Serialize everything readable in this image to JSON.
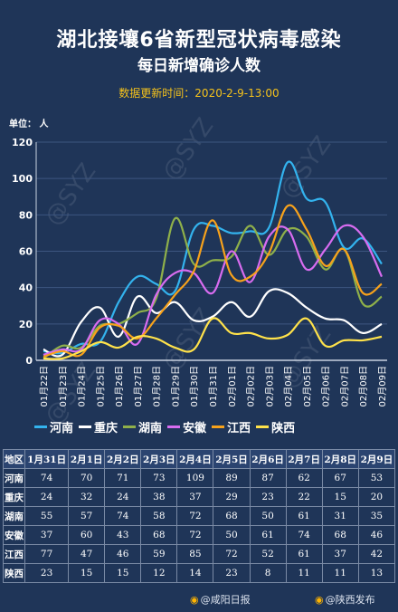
{
  "title": "湖北接壤6省新型冠状病毒感染",
  "subtitle": "每日新增确诊人数",
  "update_text": "数据更新时间：2020-2-9-13:00",
  "unit_label": "单位：  人",
  "watermark": "@SYZ",
  "footer": {
    "left": "@咸阳日报",
    "right": "@陕西发布"
  },
  "chart_data": {
    "type": "line",
    "x": [
      "01月22日",
      "01月23日",
      "01月24日",
      "01月25日",
      "01月26日",
      "01月27日",
      "01月28日",
      "01月29日",
      "01月30日",
      "01月31日",
      "02月01日",
      "02月02日",
      "02月03日",
      "02月04日",
      "02月05日",
      "02月06日",
      "02月07日",
      "02月08日",
      "02月09日"
    ],
    "ylim": [
      0,
      120
    ],
    "yticks": [
      0,
      20,
      40,
      60,
      80,
      100,
      120
    ],
    "series": [
      {
        "name": "河南",
        "color": "#33b3ee",
        "values": [
          5,
          4,
          9,
          10,
          32,
          46,
          42,
          38,
          72,
          74,
          70,
          71,
          73,
          109,
          89,
          87,
          62,
          67,
          53
        ]
      },
      {
        "name": "重庆",
        "color": "#ffffff",
        "values": [
          6,
          3,
          21,
          29,
          13,
          35,
          26,
          32,
          22,
          24,
          32,
          24,
          38,
          37,
          29,
          23,
          22,
          15,
          20
        ]
      },
      {
        "name": "湖南",
        "color": "#8fb04a",
        "values": [
          1,
          8,
          7,
          19,
          20,
          26,
          34,
          78,
          53,
          55,
          57,
          74,
          58,
          72,
          68,
          50,
          61,
          31,
          35
        ]
      },
      {
        "name": "安徽",
        "color": "#d86cf0",
        "values": [
          3,
          6,
          6,
          22,
          20,
          9,
          36,
          48,
          48,
          37,
          60,
          43,
          68,
          72,
          50,
          61,
          74,
          68,
          46
        ]
      },
      {
        "name": "江西",
        "color": "#f7a21b",
        "values": [
          2,
          5,
          3,
          18,
          19,
          12,
          23,
          36,
          49,
          77,
          47,
          46,
          59,
          85,
          72,
          52,
          61,
          37,
          42
        ]
      },
      {
        "name": "陕西",
        "color": "#ffe24a",
        "values": [
          1,
          1,
          5,
          10,
          7,
          13,
          12,
          7,
          6,
          23,
          15,
          15,
          12,
          14,
          23,
          8,
          11,
          11,
          13
        ]
      }
    ]
  },
  "table": {
    "corner": "地区",
    "dates": [
      "1月31日",
      "2月1日",
      "2月2日",
      "2月3日",
      "2月4日",
      "2月5日",
      "2月6日",
      "2月7日",
      "2月8日",
      "2月9日"
    ],
    "rows": [
      {
        "region": "河南",
        "values": [
          "74",
          "70",
          "71",
          "73",
          "109",
          "89",
          "87",
          "62",
          "67",
          "53"
        ]
      },
      {
        "region": "重庆",
        "values": [
          "24",
          "32",
          "24",
          "38",
          "37",
          "29",
          "23",
          "22",
          "15",
          "20"
        ]
      },
      {
        "region": "湖南",
        "values": [
          "55",
          "57",
          "74",
          "58",
          "72",
          "68",
          "50",
          "61",
          "31",
          "35"
        ]
      },
      {
        "region": "安徽",
        "values": [
          "37",
          "60",
          "43",
          "68",
          "72",
          "50",
          "61",
          "74",
          "68",
          "46"
        ]
      },
      {
        "region": "江西",
        "values": [
          "77",
          "47",
          "46",
          "59",
          "85",
          "72",
          "52",
          "61",
          "37",
          "42"
        ]
      },
      {
        "region": "陕西",
        "values": [
          "23",
          "15",
          "15",
          "12",
          "14",
          "23",
          "8",
          "11",
          "11",
          "13"
        ]
      }
    ]
  }
}
